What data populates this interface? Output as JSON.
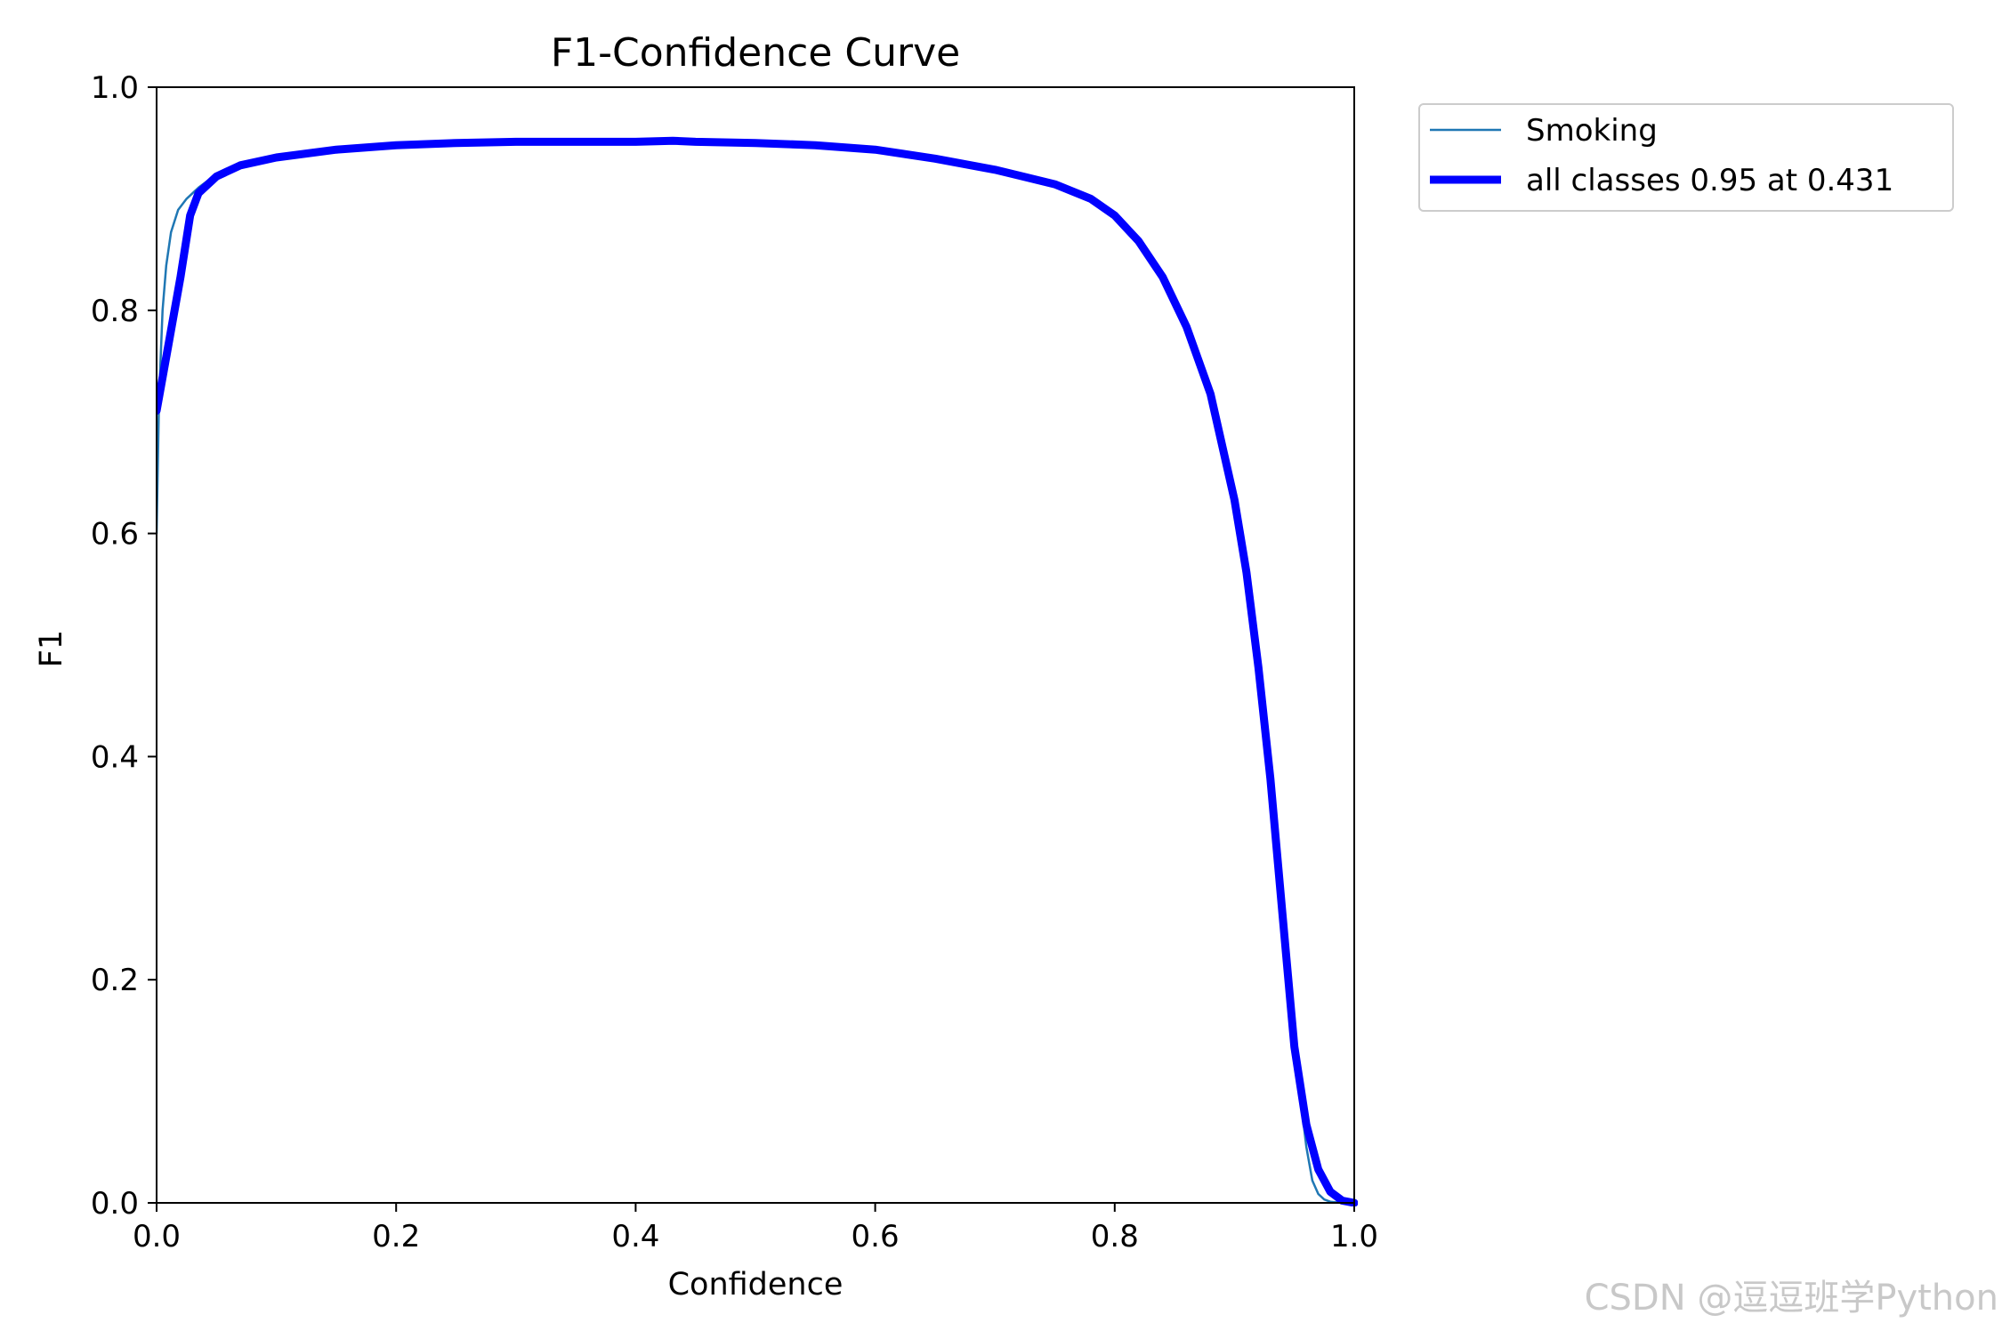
{
  "chart_data": {
    "type": "line",
    "title": "F1-Confidence Curve",
    "xlabel": "Confidence",
    "ylabel": "F1",
    "xlim": [
      0.0,
      1.0
    ],
    "ylim": [
      0.0,
      1.0
    ],
    "xticks": [
      "0.0",
      "0.2",
      "0.4",
      "0.6",
      "0.8",
      "1.0"
    ],
    "yticks": [
      "0.0",
      "0.2",
      "0.4",
      "0.6",
      "0.8",
      "1.0"
    ],
    "grid": false,
    "legend_position": "outside-top-right",
    "series": [
      {
        "name": "Smoking",
        "color": "#1f77b4",
        "x": [
          0.0,
          0.002,
          0.005,
          0.008,
          0.012,
          0.018,
          0.025,
          0.035,
          0.05,
          0.07,
          0.1,
          0.15,
          0.2,
          0.25,
          0.3,
          0.35,
          0.4,
          0.431,
          0.45,
          0.5,
          0.55,
          0.6,
          0.65,
          0.7,
          0.75,
          0.78,
          0.8,
          0.82,
          0.84,
          0.86,
          0.88,
          0.9,
          0.91,
          0.92,
          0.93,
          0.94,
          0.95,
          0.96,
          0.965,
          0.97,
          0.975,
          0.98,
          0.99,
          1.0
        ],
        "y": [
          0.6,
          0.72,
          0.8,
          0.84,
          0.87,
          0.89,
          0.9,
          0.91,
          0.922,
          0.93,
          0.937,
          0.944,
          0.948,
          0.95,
          0.951,
          0.951,
          0.951,
          0.952,
          0.951,
          0.95,
          0.948,
          0.944,
          0.936,
          0.926,
          0.913,
          0.9,
          0.885,
          0.862,
          0.83,
          0.785,
          0.725,
          0.63,
          0.565,
          0.48,
          0.38,
          0.26,
          0.14,
          0.05,
          0.02,
          0.008,
          0.003,
          0.001,
          0.0,
          0.0
        ]
      },
      {
        "name": "all classes 0.95 at 0.431",
        "color": "#0000ff",
        "x": [
          0.0,
          0.01,
          0.02,
          0.028,
          0.035,
          0.05,
          0.07,
          0.1,
          0.15,
          0.2,
          0.25,
          0.3,
          0.35,
          0.4,
          0.431,
          0.45,
          0.5,
          0.55,
          0.6,
          0.65,
          0.7,
          0.75,
          0.78,
          0.8,
          0.82,
          0.84,
          0.86,
          0.88,
          0.9,
          0.91,
          0.92,
          0.93,
          0.94,
          0.95,
          0.96,
          0.97,
          0.98,
          0.99,
          1.0
        ],
        "y": [
          0.71,
          0.77,
          0.83,
          0.885,
          0.905,
          0.92,
          0.93,
          0.937,
          0.944,
          0.948,
          0.95,
          0.951,
          0.951,
          0.951,
          0.952,
          0.951,
          0.95,
          0.948,
          0.944,
          0.936,
          0.926,
          0.913,
          0.9,
          0.885,
          0.862,
          0.83,
          0.785,
          0.725,
          0.63,
          0.565,
          0.48,
          0.38,
          0.26,
          0.14,
          0.07,
          0.03,
          0.01,
          0.002,
          0.0
        ]
      }
    ]
  },
  "watermark": "CSDN @逗逗班学Python"
}
